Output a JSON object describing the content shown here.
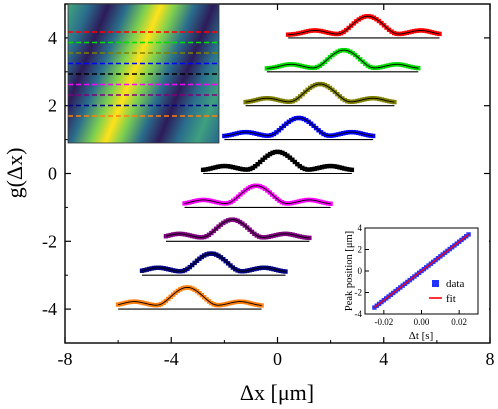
{
  "chart_data": [
    {
      "type": "line",
      "xlabel": "Δx [μm]",
      "ylabel": "g(Δx)",
      "xlim": [
        -8,
        8
      ],
      "ylim": [
        -5,
        5
      ],
      "x_ticks": [
        "-8",
        "-4",
        "0",
        "4",
        "8"
      ],
      "y_ticks": [
        "-4",
        "-2",
        "0",
        "2",
        "4"
      ],
      "grid": false,
      "series": [
        {
          "color": "#ff7f0e",
          "baseline": -4.0,
          "peak_x": -3.4,
          "x_range": [
            -6.0,
            -0.6
          ]
        },
        {
          "color": "#000080",
          "baseline": -3.0,
          "peak_x": -2.5,
          "x_range": [
            -5.1,
            0.3
          ]
        },
        {
          "color": "#800080",
          "baseline": -2.0,
          "peak_x": -1.7,
          "x_range": [
            -4.2,
            1.2
          ]
        },
        {
          "color": "#ff00ff",
          "baseline": -1.0,
          "peak_x": -0.8,
          "x_range": [
            -3.5,
            2.0
          ]
        },
        {
          "color": "#000000",
          "baseline": 0.0,
          "peak_x": 0.0,
          "x_range": [
            -2.8,
            2.8
          ]
        },
        {
          "color": "#0000ff",
          "baseline": 1.0,
          "peak_x": 0.8,
          "x_range": [
            -2.0,
            3.6
          ]
        },
        {
          "color": "#808000",
          "baseline": 2.0,
          "peak_x": 1.6,
          "x_range": [
            -1.2,
            4.4
          ]
        },
        {
          "color": "#00dd00",
          "baseline": 3.0,
          "peak_x": 2.5,
          "x_range": [
            -0.4,
            5.3
          ]
        },
        {
          "color": "#ff0000",
          "baseline": 4.0,
          "peak_x": 3.4,
          "x_range": [
            0.4,
            6.1
          ]
        }
      ],
      "peak_amplitude": 0.55,
      "side_lobe_amplitude": 0.13,
      "fit_curve_color": "#000000"
    },
    {
      "type": "line",
      "xlabel": "Δt [s]",
      "ylabel": "Peak position [μm]",
      "xlim": [
        -0.03,
        0.03
      ],
      "ylim": [
        -4,
        4
      ],
      "x_ticks": [
        "-0.02",
        "0.00",
        "0.02"
      ],
      "y_ticks": [
        "-4",
        "-2",
        "0",
        "2",
        "4"
      ],
      "legend": {
        "position": "bottom-right",
        "entries": [
          "data",
          "fit"
        ]
      },
      "series": [
        {
          "name": "data",
          "marker": "square",
          "color": "#2233ff",
          "x": [
            -0.025,
            0.025
          ],
          "y": [
            -3.4,
            3.4
          ]
        },
        {
          "name": "fit",
          "marker": "line",
          "color": "#ff0000",
          "x": [
            -0.025,
            0.025
          ],
          "y": [
            -3.4,
            3.4
          ]
        }
      ]
    }
  ],
  "inset_image": {
    "type": "heatmap",
    "description_colors": [
      "#2a6e8c",
      "#3fa07f",
      "#2d1b5a",
      "#ffe21a",
      "#7ed04f"
    ],
    "dashed_line_colors": [
      "#ff0000",
      "#00dd00",
      "#808000",
      "#0000ff",
      "#000000",
      "#ff00ff",
      "#800080",
      "#000080",
      "#ff7f0e"
    ]
  }
}
